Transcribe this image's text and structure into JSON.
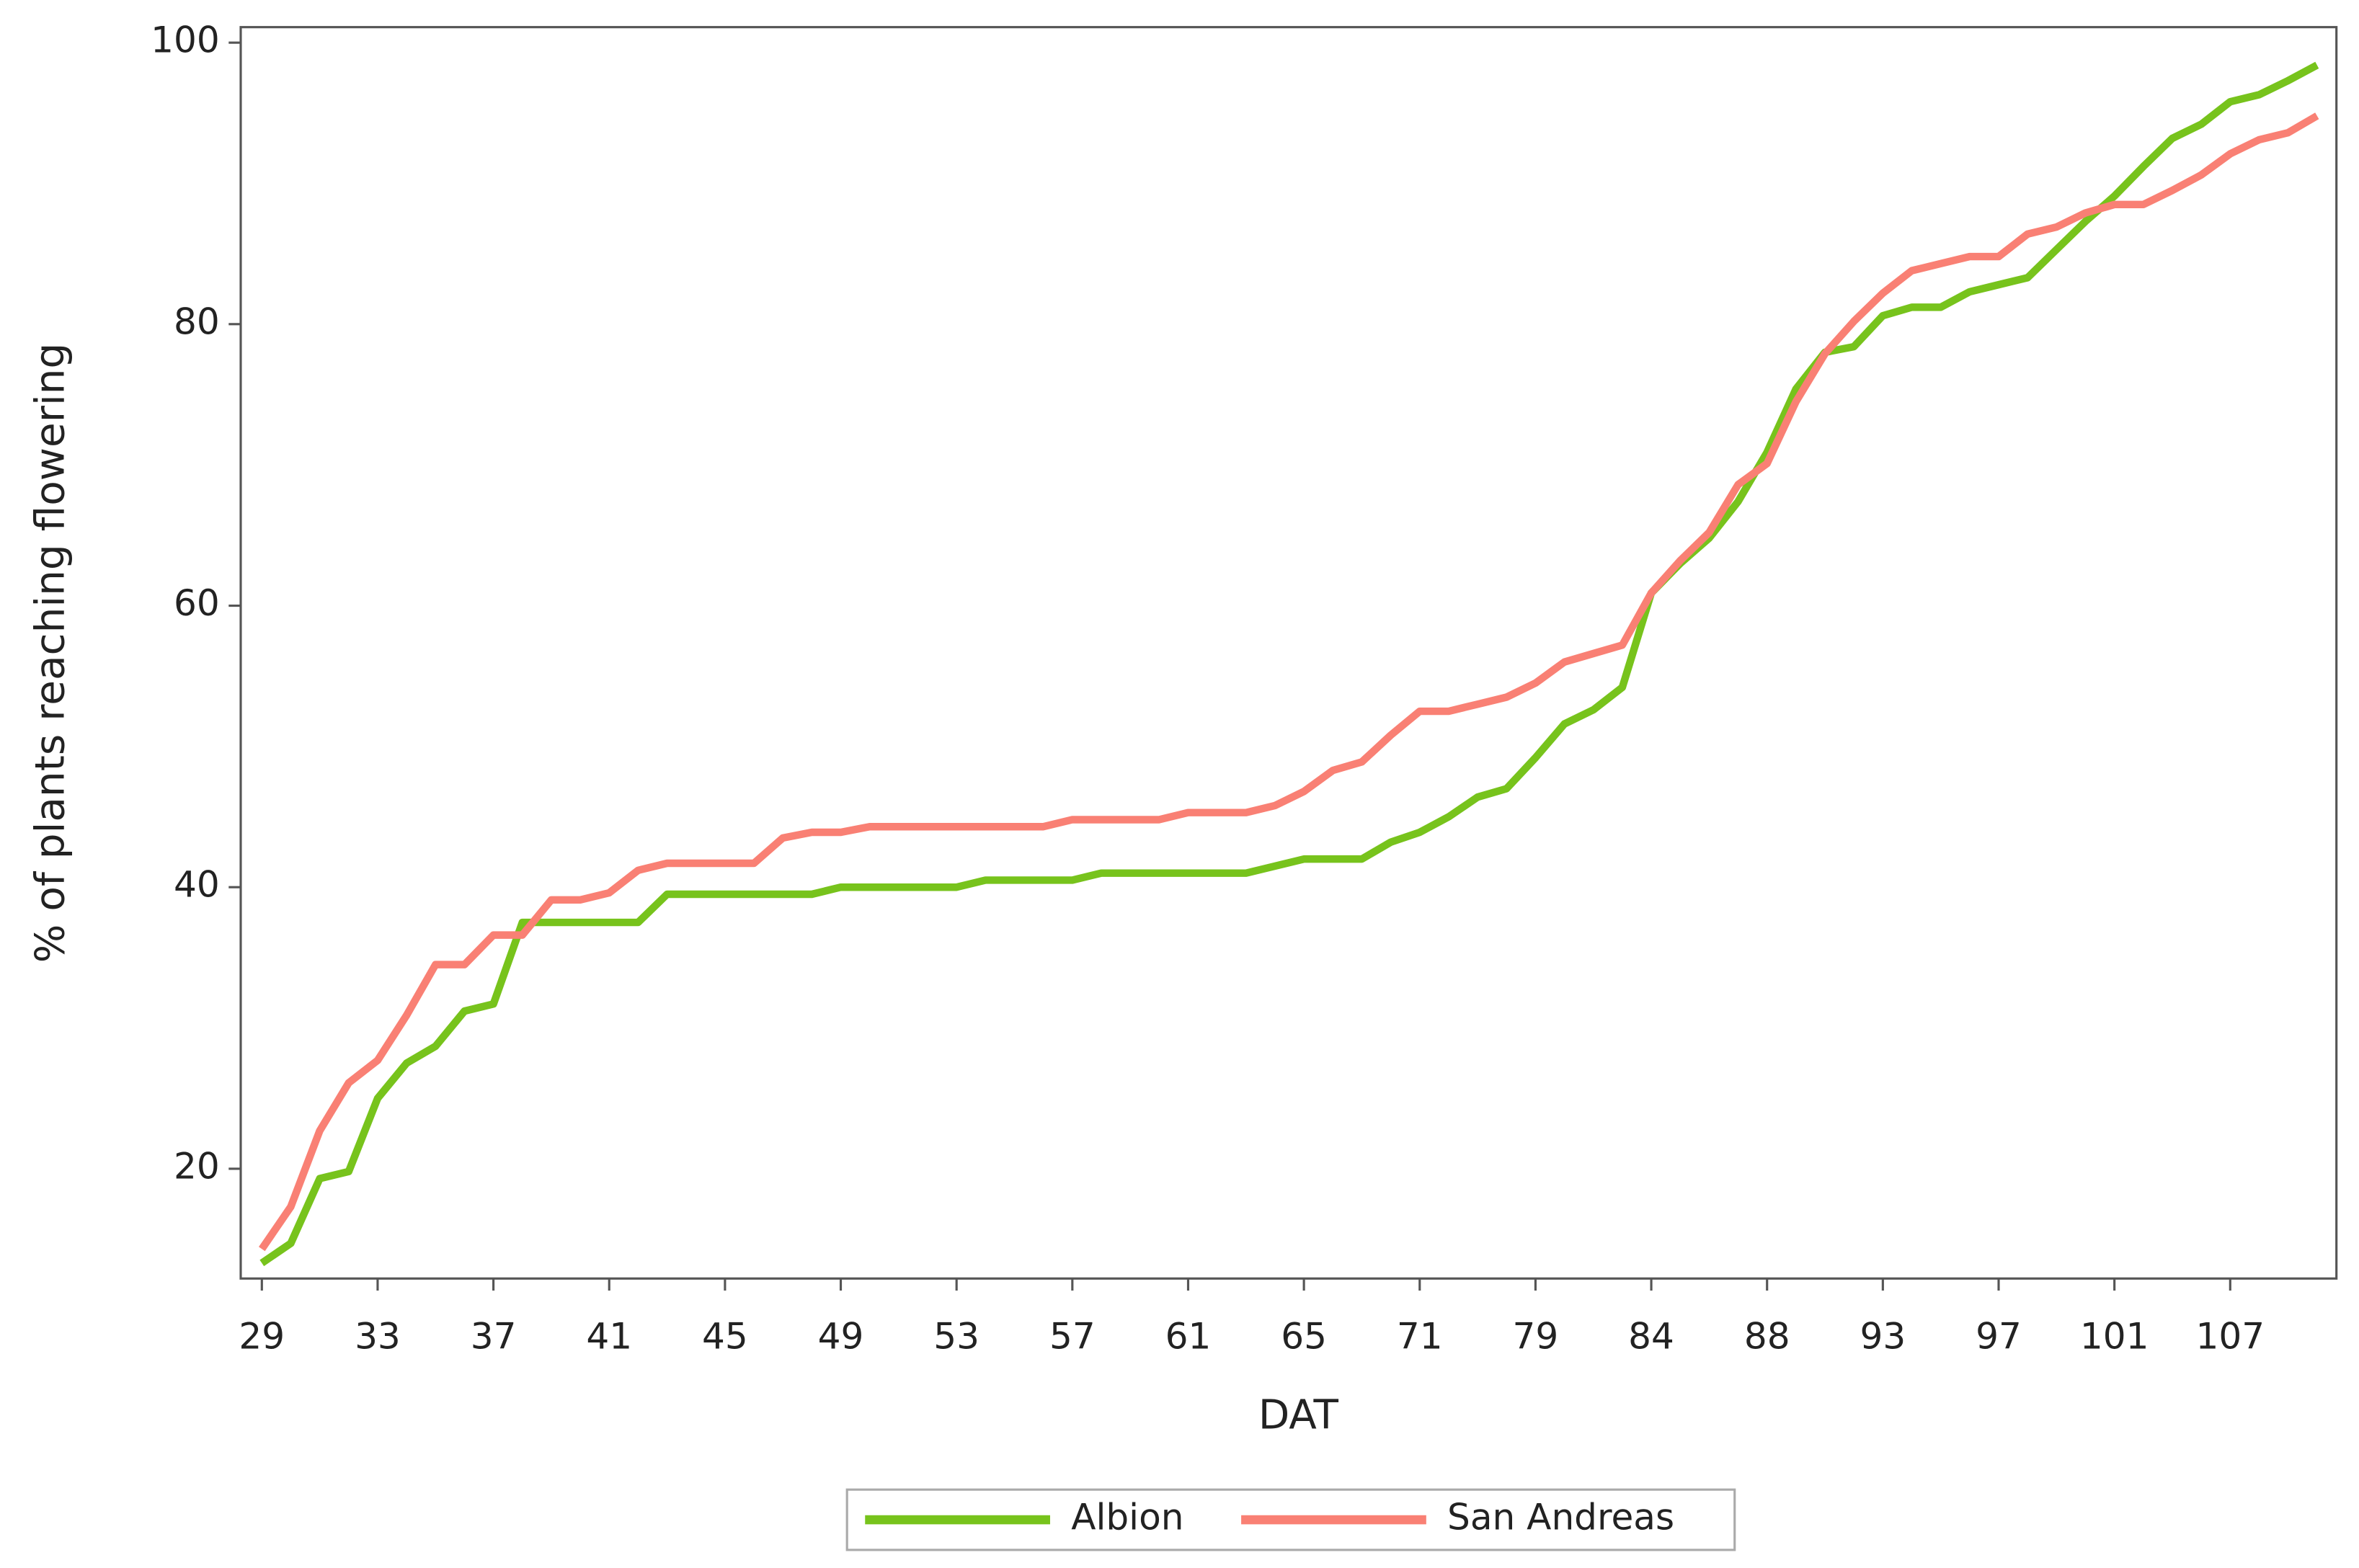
{
  "chart_data": {
    "type": "line",
    "x_label": "DAT",
    "y_label": "% of plants reaching flowering",
    "categories": [
      "29",
      null,
      null,
      null,
      "33",
      null,
      null,
      null,
      "37",
      null,
      null,
      null,
      "41",
      null,
      null,
      null,
      "45",
      null,
      null,
      null,
      "49",
      null,
      null,
      null,
      "53",
      null,
      null,
      null,
      "57",
      null,
      null,
      null,
      "61",
      null,
      null,
      null,
      "65",
      null,
      null,
      null,
      "71",
      null,
      null,
      null,
      "79",
      null,
      null,
      null,
      "84",
      null,
      null,
      null,
      "88",
      null,
      null,
      null,
      "93",
      null,
      null,
      null,
      "97",
      null,
      null,
      null,
      "101",
      null,
      null,
      null,
      "107",
      null,
      null,
      null
    ],
    "series": [
      {
        "name": "Albion",
        "color": "#77c31c",
        "values": [
          13.3,
          14.7,
          19.3,
          19.8,
          25.0,
          27.5,
          28.7,
          31.2,
          31.7,
          37.5,
          37.5,
          37.5,
          37.5,
          37.5,
          39.5,
          39.5,
          39.5,
          39.5,
          39.5,
          39.5,
          40.0,
          40.0,
          40.0,
          40.0,
          40.0,
          40.5,
          40.5,
          40.5,
          40.5,
          41.0,
          41.0,
          41.0,
          41.0,
          41.0,
          41.0,
          41.5,
          42.0,
          42.0,
          42.0,
          43.2,
          43.9,
          45.0,
          46.4,
          47.0,
          49.2,
          51.6,
          52.6,
          54.2,
          60.9,
          63.0,
          64.8,
          67.4,
          70.9,
          75.4,
          78.0,
          78.4,
          80.6,
          81.2,
          81.2,
          82.3,
          82.8,
          83.3,
          85.3,
          87.3,
          89.1,
          91.2,
          93.2,
          94.2,
          95.8,
          96.3,
          97.3,
          98.4
        ]
      },
      {
        "name": "San Andreas",
        "color": "#f98074",
        "values": [
          14.3,
          17.3,
          22.7,
          26.1,
          27.7,
          30.9,
          34.5,
          34.5,
          36.6,
          36.6,
          39.1,
          39.1,
          39.6,
          41.2,
          41.7,
          41.7,
          41.7,
          41.7,
          43.5,
          43.9,
          43.9,
          44.3,
          44.3,
          44.3,
          44.3,
          44.3,
          44.3,
          44.3,
          44.8,
          44.8,
          44.8,
          44.8,
          45.3,
          45.3,
          45.3,
          45.8,
          46.8,
          48.3,
          48.9,
          50.8,
          52.5,
          52.5,
          53.0,
          53.5,
          54.5,
          56.0,
          56.6,
          57.2,
          60.9,
          63.2,
          65.2,
          68.6,
          70.1,
          74.5,
          77.9,
          80.2,
          82.2,
          83.8,
          84.3,
          84.8,
          84.8,
          86.4,
          86.9,
          87.9,
          88.5,
          88.5,
          89.5,
          90.6,
          92.1,
          93.1,
          93.6,
          94.8
        ]
      }
    ],
    "ylim": [
      12.2,
      101.1
    ],
    "yticks": [
      20,
      40,
      60,
      80,
      100
    ],
    "legend": "bottom"
  }
}
